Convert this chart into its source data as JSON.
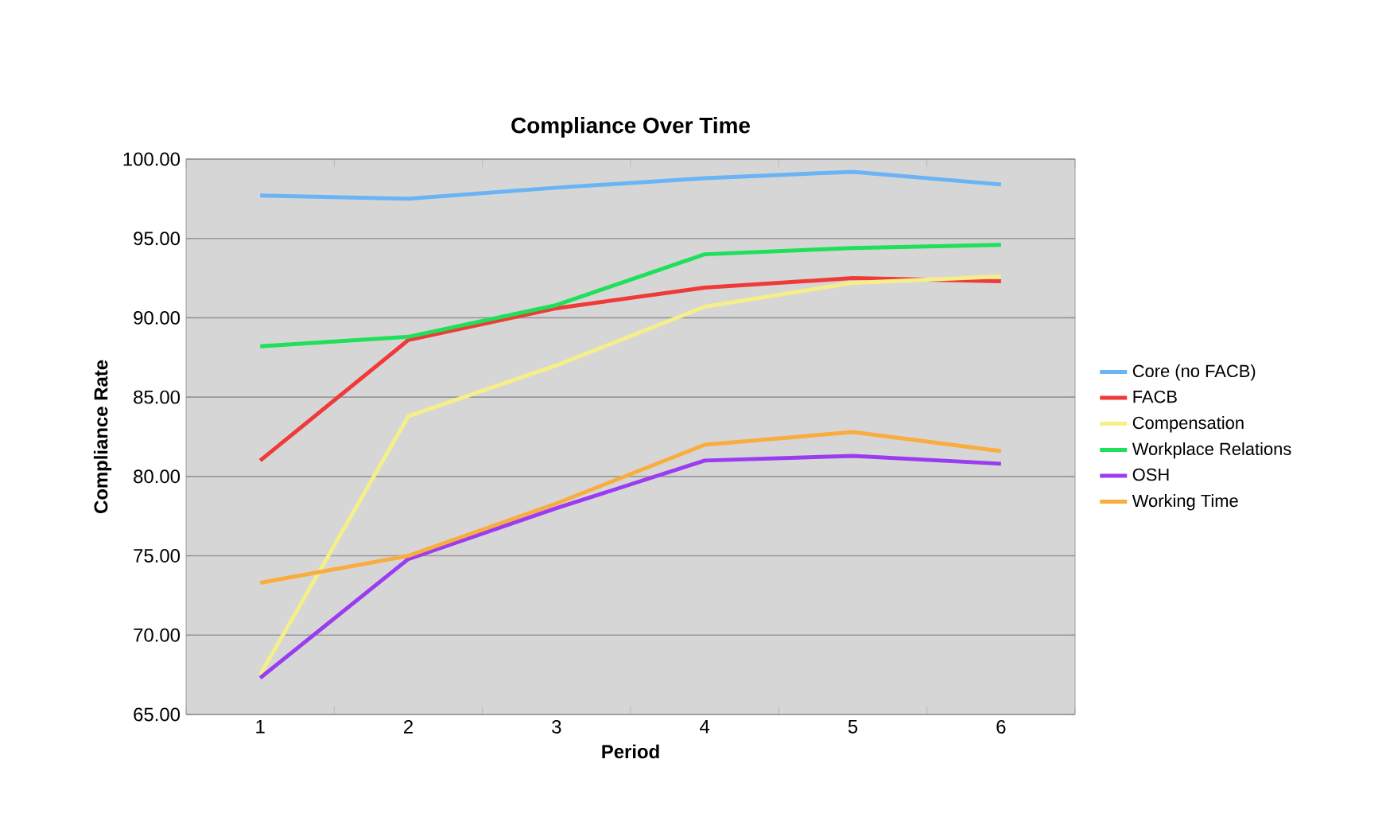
{
  "chart_data": {
    "type": "line",
    "title": "Compliance Over Time",
    "xlabel": "Period",
    "ylabel": "Compliance Rate",
    "categories": [
      "1",
      "2",
      "3",
      "4",
      "5",
      "6"
    ],
    "ylim": [
      65,
      100
    ],
    "yticks": [
      {
        "value": 65,
        "label": "65.00"
      },
      {
        "value": 70,
        "label": "70.00"
      },
      {
        "value": 75,
        "label": "75.00"
      },
      {
        "value": 80,
        "label": "80.00"
      },
      {
        "value": 85,
        "label": "85.00"
      },
      {
        "value": 90,
        "label": "90.00"
      },
      {
        "value": 95,
        "label": "95.00"
      },
      {
        "value": 100,
        "label": "100.00"
      }
    ],
    "grid": "y",
    "legend": "right",
    "marker": "none",
    "line_style": "solid",
    "series": [
      {
        "name": "Core (no FACB)",
        "color": "#6ab4f5",
        "values": [
          97.7,
          97.5,
          98.2,
          98.8,
          99.2,
          98.4
        ]
      },
      {
        "name": "FACB",
        "color": "#f03a3a",
        "values": [
          81.0,
          88.6,
          90.6,
          91.9,
          92.5,
          92.3
        ]
      },
      {
        "name": "Compensation",
        "color": "#f5ef8a",
        "values": [
          67.5,
          83.8,
          87.0,
          90.7,
          92.2,
          92.6
        ]
      },
      {
        "name": "Workplace Relations",
        "color": "#1ee05a",
        "values": [
          88.2,
          88.8,
          90.8,
          94.0,
          94.4,
          94.6
        ]
      },
      {
        "name": "OSH",
        "color": "#9b3cf0",
        "values": [
          67.3,
          74.8,
          78.0,
          81.0,
          81.3,
          80.8
        ]
      },
      {
        "name": "Working Time",
        "color": "#f9ad3f",
        "values": [
          73.3,
          75.0,
          78.3,
          82.0,
          82.8,
          81.6
        ]
      }
    ]
  }
}
